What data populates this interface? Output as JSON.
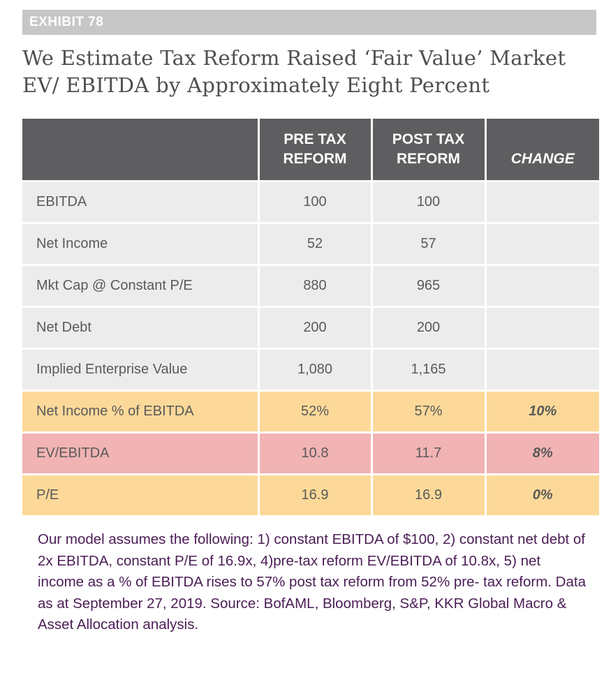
{
  "exhibit": {
    "label": "EXHIBIT 78"
  },
  "title": "We Estimate Tax Reform Raised ‘Fair Value’ Market EV/ EBITDA by Approximately Eight Percent",
  "table": {
    "headers": {
      "label": "",
      "pre": "PRE TAX REFORM",
      "post": "POST TAX REFORM",
      "change": "CHANGE"
    },
    "rows": [
      {
        "label": "EBITDA",
        "pre": "100",
        "post": "100",
        "change": "",
        "highlight": "none"
      },
      {
        "label": "Net Income",
        "pre": "52",
        "post": "57",
        "change": "",
        "highlight": "none"
      },
      {
        "label": "Mkt Cap @ Constant P/E",
        "pre": "880",
        "post": "965",
        "change": "",
        "highlight": "none"
      },
      {
        "label": "Net Debt",
        "pre": "200",
        "post": "200",
        "change": "",
        "highlight": "none"
      },
      {
        "label": "Implied Enterprise Value",
        "pre": "1,080",
        "post": "1,165",
        "change": "",
        "highlight": "none"
      },
      {
        "label": "Net Income % of EBITDA",
        "pre": "52%",
        "post": "57%",
        "change": "10%",
        "highlight": "yellow"
      },
      {
        "label": "EV/EBITDA",
        "pre": "10.8",
        "post": "11.7",
        "change": "8%",
        "highlight": "pink"
      },
      {
        "label": "P/E",
        "pre": "16.9",
        "post": "16.9",
        "change": "0%",
        "highlight": "yellow"
      }
    ]
  },
  "colors": {
    "header_bg": "#5e5e60",
    "plain_row": "#ececed",
    "yellow_row": "#fcd999",
    "pink_row": "#f1b3b4",
    "footnote_text": "#4b1d55"
  },
  "chart_data": {
    "type": "table",
    "title": "We Estimate Tax Reform Raised ‘Fair Value’ Market EV/ EBITDA by Approximately Eight Percent",
    "columns": [
      "",
      "PRE TAX REFORM",
      "POST TAX REFORM",
      "CHANGE"
    ],
    "rows": [
      [
        "EBITDA",
        100,
        100,
        null
      ],
      [
        "Net Income",
        52,
        57,
        null
      ],
      [
        "Mkt Cap @ Constant P/E",
        880,
        965,
        null
      ],
      [
        "Net Debt",
        200,
        200,
        null
      ],
      [
        "Implied Enterprise Value",
        1080,
        1165,
        null
      ],
      [
        "Net Income % of EBITDA",
        "52%",
        "57%",
        "10%"
      ],
      [
        "EV/EBITDA",
        10.8,
        11.7,
        "8%"
      ],
      [
        "P/E",
        16.9,
        16.9,
        "0%"
      ]
    ]
  },
  "footnote": "Our model assumes the following: 1) constant EBITDA of $100, 2) constant net debt of 2x EBITDA, constant P/E of 16.9x, 4)pre-tax reform EV/EBITDA of 10.8x, 5) net income as a % of EBITDA rises to 57% post tax reform from 52% pre- tax reform. Data as at September 27, 2019. Source: BofAML, Bloomberg, S&P, KKR Global Macro & Asset Allocation analysis."
}
